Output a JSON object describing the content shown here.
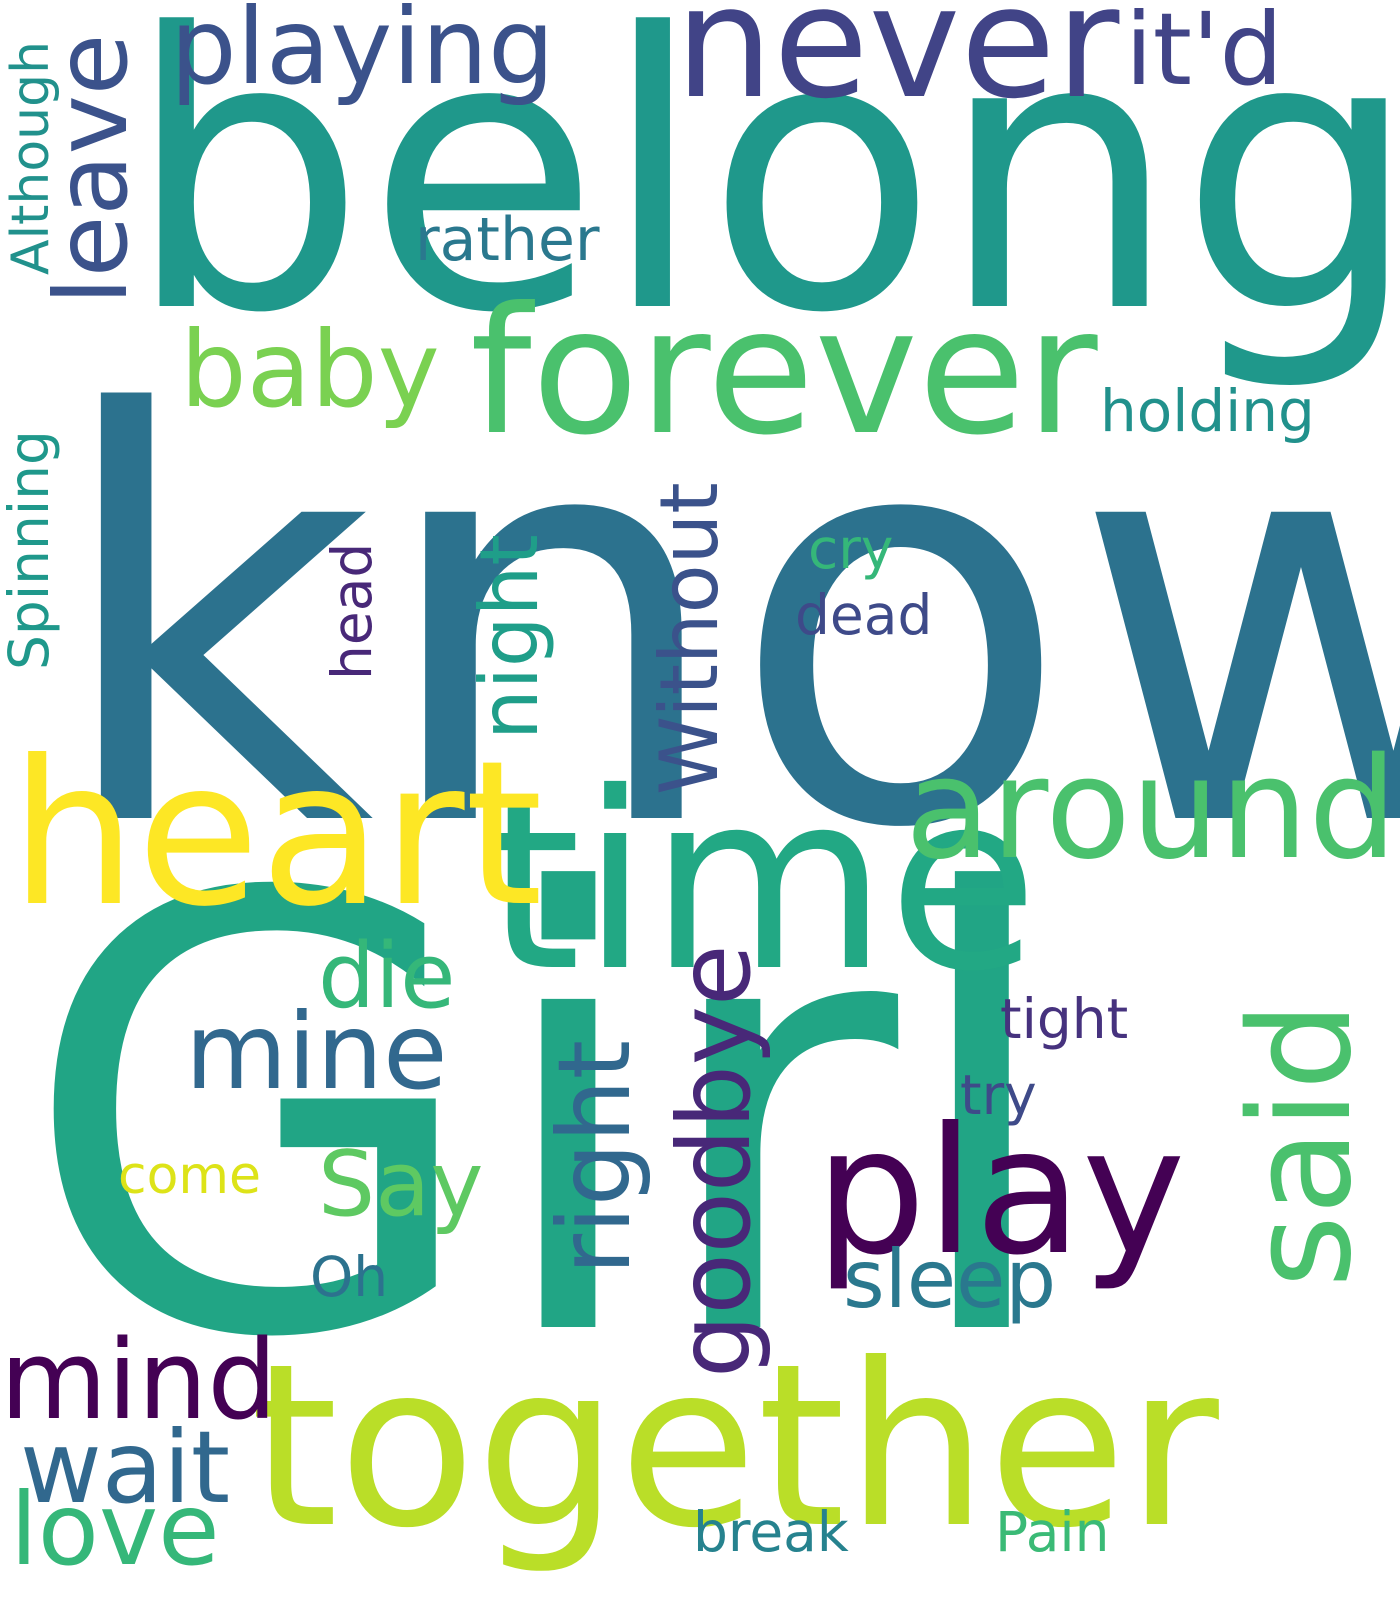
{
  "words": {
    "know": {
      "text": "know",
      "color": "#2c728e"
    },
    "girl": {
      "text": "Girl",
      "color": "#21a585"
    },
    "belong": {
      "text": "belong",
      "color": "#1f988b"
    },
    "together": {
      "text": "together",
      "color": "#bade28"
    },
    "time": {
      "text": "time",
      "color": "#22a884"
    },
    "heart": {
      "text": "heart",
      "color": "#fde725"
    },
    "forever": {
      "text": "forever",
      "color": "#4ac16d"
    },
    "never": {
      "text": "never",
      "color": "#414487"
    },
    "play": {
      "text": "play",
      "color": "#440154"
    },
    "around": {
      "text": "around",
      "color": "#4ac16d"
    },
    "said": {
      "text": "said",
      "color": "#4ac16d"
    },
    "playing": {
      "text": "playing",
      "color": "#3b528b"
    },
    "itd": {
      "text": "it'd",
      "color": "#414487"
    },
    "leave": {
      "text": "leave",
      "color": "#3b528b"
    },
    "baby": {
      "text": "baby",
      "color": "#7ad151"
    },
    "mind": {
      "text": "mind",
      "color": "#440154"
    },
    "goodbye": {
      "text": "goodbye",
      "color": "#482878"
    },
    "right": {
      "text": "right",
      "color": "#31688e"
    },
    "mine": {
      "text": "mine",
      "color": "#31688e"
    },
    "without": {
      "text": "Without",
      "color": "#3b528b"
    },
    "night": {
      "text": "night",
      "color": "#1f9e89"
    },
    "wait": {
      "text": "wait",
      "color": "#31688e"
    },
    "love": {
      "text": "love",
      "color": "#35b779"
    },
    "die": {
      "text": "die",
      "color": "#35b779"
    },
    "say": {
      "text": "Say",
      "color": "#5ec962"
    },
    "sleep": {
      "text": "sleep",
      "color": "#2a788e"
    },
    "rather": {
      "text": "rather",
      "color": "#2a788e"
    },
    "holding": {
      "text": "holding",
      "color": "#21918c"
    },
    "although": {
      "text": "Although",
      "color": "#21918c"
    },
    "spinning": {
      "text": "Spinning",
      "color": "#1f988b"
    },
    "head": {
      "text": "head",
      "color": "#482878"
    },
    "cry": {
      "text": "cry",
      "color": "#35b779"
    },
    "dead": {
      "text": "dead",
      "color": "#3e4a89"
    },
    "tight": {
      "text": "tight",
      "color": "#46327e"
    },
    "try": {
      "text": "try",
      "color": "#3e4a89"
    },
    "come": {
      "text": "come",
      "color": "#dde318"
    },
    "oh": {
      "text": "Oh",
      "color": "#2c728e"
    },
    "break": {
      "text": "break",
      "color": "#26828e"
    },
    "pain": {
      "text": "Pain",
      "color": "#3aba76"
    }
  }
}
